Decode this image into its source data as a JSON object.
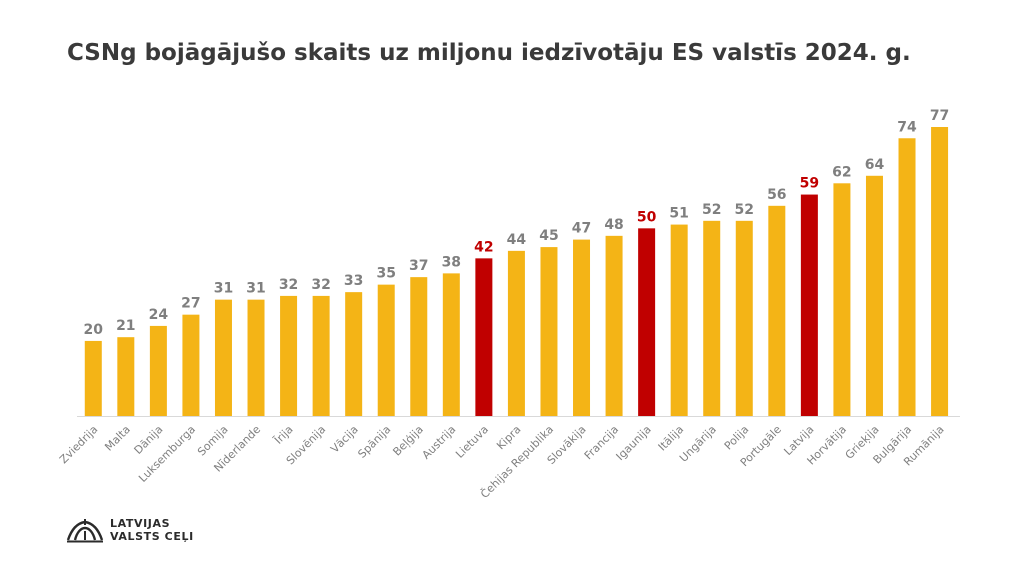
{
  "title": "CSNg bojāgājušo skaits uz miljonu iedzīvotāju ES valstīs 2024. g.",
  "logo": {
    "line1": "LATVIJAS",
    "line2": "VALSTS CEĻI"
  },
  "colors": {
    "bar": "#F4B416",
    "highlight": "#C00000",
    "label": "#7F7F7F",
    "axis_line": "#D9D9D9"
  },
  "chart_data": {
    "type": "bar",
    "title": "CSNg bojāgājušo skaits uz miljonu iedzīvotāju ES valstīs 2024. g.",
    "xlabel": "",
    "ylabel": "",
    "ylim": [
      0,
      77
    ],
    "grid": false,
    "legend": "none",
    "categories": [
      "Zviedrija",
      "Malta",
      "Dānija",
      "Luksemburga",
      "Somija",
      "Nīderlande",
      "Īrija",
      "Slovēnija",
      "Vācija",
      "Spānija",
      "Beļģija",
      "Austrija",
      "Lietuva",
      "Kipra",
      "Čehijas Republika",
      "Slovākija",
      "Francija",
      "Igaunija",
      "Itālija",
      "Ungārija",
      "Polija",
      "Portugāle",
      "Latvija",
      "Horvātija",
      "Grieķija",
      "Bulgārija",
      "Rumānija"
    ],
    "values": [
      20,
      21,
      24,
      27,
      31,
      31,
      32,
      32,
      33,
      35,
      37,
      38,
      42,
      44,
      45,
      47,
      48,
      50,
      51,
      52,
      52,
      56,
      59,
      62,
      64,
      74,
      77
    ],
    "highlighted": [
      "Lietuva",
      "Igaunija",
      "Latvija"
    ],
    "data_labels": true
  }
}
